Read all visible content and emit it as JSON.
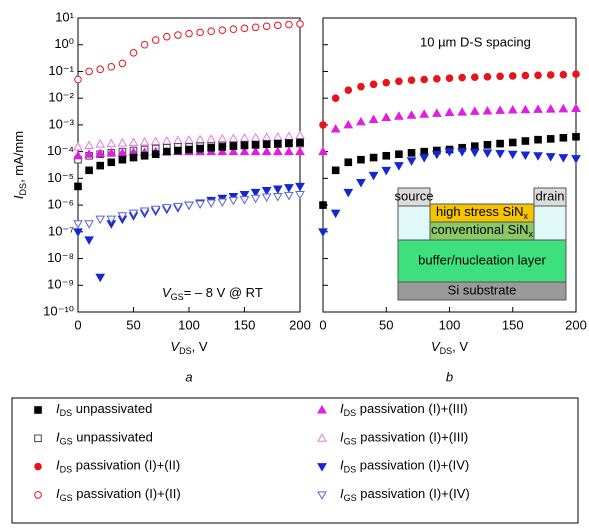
{
  "chart_data": [
    {
      "type": "scatter",
      "label": "a",
      "xlabel": "VDS, V",
      "ylabel": "IDS, mA/mm",
      "annotation": "VGS= – 8 V @ RT",
      "log_y": true,
      "xlim": [
        0,
        200
      ],
      "ylim": [
        1e-10,
        10
      ],
      "xticks": [
        0,
        50,
        100,
        150,
        200
      ],
      "yticks": [
        {
          "value": 10,
          "label": "10¹"
        },
        {
          "value": 1,
          "label": "10⁰"
        },
        {
          "value": 0.1,
          "label": "10⁻¹"
        },
        {
          "value": 0.01,
          "label": "10⁻²"
        },
        {
          "value": 0.001,
          "label": "10⁻³"
        },
        {
          "value": 0.0001,
          "label": "10⁻⁴"
        },
        {
          "value": 1e-05,
          "label": "10⁻⁵"
        },
        {
          "value": 1e-06,
          "label": "10⁻⁶"
        },
        {
          "value": 1e-07,
          "label": "10⁻⁷"
        },
        {
          "value": 1e-08,
          "label": "10⁻⁸"
        },
        {
          "value": 1e-09,
          "label": "10⁻⁹"
        },
        {
          "value": 1e-10,
          "label": "10⁻¹⁰"
        }
      ],
      "x": [
        0,
        10,
        20,
        30,
        40,
        50,
        60,
        70,
        80,
        90,
        100,
        110,
        120,
        130,
        140,
        150,
        160,
        170,
        180,
        190,
        200
      ],
      "series": [
        {
          "name": "IGS passivation (I)+(II)",
          "color": "#e8141c",
          "marker": "circle",
          "filled": false,
          "values": [
            0.05,
            0.1,
            0.12,
            0.15,
            0.2,
            0.5,
            1,
            1.5,
            2,
            2.3,
            2.6,
            2.9,
            3.2,
            3.5,
            3.8,
            4.1,
            4.5,
            4.9,
            5.3,
            5.7,
            6
          ]
        },
        {
          "name": "IGS passivation (I)+(III)",
          "color": "#e878e8",
          "marker": "triangle-up",
          "filled": false,
          "values": [
            0.00015,
            0.00017,
            0.00019,
            0.0002,
            0.00021,
            0.00022,
            0.00023,
            0.00024,
            0.00025,
            0.00026,
            0.00027,
            0.00028,
            0.00029,
            0.0003,
            0.00031,
            0.00032,
            0.00033,
            0.00034,
            0.00035,
            0.00037,
            0.0004
          ]
        },
        {
          "name": "IGS unpassivated",
          "color": "#444444",
          "marker": "square",
          "filled": false,
          "values": [
            5e-05,
            7e-05,
            8e-05,
            9e-05,
            0.0001,
            0.00011,
            0.00012,
            0.00013,
            0.00014,
            0.00015,
            0.00015,
            0.00016,
            0.00016,
            0.00017,
            0.00017,
            0.00018,
            0.00018,
            0.00019,
            0.00019,
            0.0002,
            0.0002
          ]
        },
        {
          "name": "IDS passivation (I)+(III)",
          "color": "#e01ee0",
          "marker": "triangle-up",
          "filled": true,
          "values": [
            7e-05,
            8e-05,
            8.5e-05,
            9e-05,
            9e-05,
            9.5e-05,
            9.5e-05,
            0.0001,
            0.0001,
            0.0001,
            0.0001,
            0.0001,
            0.0001,
            0.0001,
            0.0001,
            0.0001,
            0.0001,
            0.0001,
            0.0001,
            0.0001,
            0.0001
          ]
        },
        {
          "name": "IDS unpassivated",
          "color": "#000000",
          "marker": "square",
          "filled": true,
          "values": [
            5e-06,
            2e-05,
            3e-05,
            4e-05,
            5e-05,
            6e-05,
            7e-05,
            8e-05,
            0.0001,
            0.00011,
            0.00012,
            0.00013,
            0.00014,
            0.00015,
            0.00016,
            0.00017,
            0.00018,
            0.00019,
            0.0002,
            0.00021,
            0.00022
          ]
        },
        {
          "name": "IDS passivation (I)+(IV)",
          "color": "#1428d2",
          "marker": "triangle-down",
          "filled": true,
          "values": [
            1e-07,
            5e-08,
            2e-09,
            2e-07,
            3e-07,
            4e-07,
            5e-07,
            6e-07,
            7e-07,
            8e-07,
            1e-06,
            1.2e-06,
            1.5e-06,
            1.8e-06,
            2.1e-06,
            2.5e-06,
            3e-06,
            3.5e-06,
            4e-06,
            4.5e-06,
            5e-06
          ]
        },
        {
          "name": "IGS passivation (I)+(IV)",
          "color": "#5a64d2",
          "marker": "triangle-down",
          "filled": false,
          "values": [
            2e-07,
            2e-07,
            3e-07,
            3e-07,
            4e-07,
            5e-07,
            6e-07,
            7e-07,
            8e-07,
            9e-07,
            1e-06,
            1.1e-06,
            1.2e-06,
            1.3e-06,
            1.5e-06,
            1.6e-06,
            1.8e-06,
            2e-06,
            2.1e-06,
            2.3e-06,
            2.5e-06
          ]
        }
      ]
    },
    {
      "type": "scatter",
      "label": "b",
      "xlabel": "VDS, V",
      "annotation": "10 µm D-S spacing",
      "log_y": true,
      "xlim": [
        0,
        200
      ],
      "ylim": [
        1e-10,
        10
      ],
      "xticks": [
        0,
        50,
        100,
        150,
        200
      ],
      "yticks": [
        10,
        1,
        0.1,
        0.01,
        0.001,
        0.0001,
        1e-05,
        1e-06,
        1e-07,
        1e-08,
        1e-09,
        1e-10
      ],
      "x": [
        0,
        10,
        20,
        30,
        40,
        50,
        60,
        70,
        80,
        90,
        100,
        110,
        120,
        130,
        140,
        150,
        160,
        170,
        180,
        190,
        200
      ],
      "series": [
        {
          "name": "IDS passivation (I)+(II)",
          "color": "#e8141c",
          "marker": "circle",
          "filled": true,
          "values": [
            0.001,
            0.01,
            0.02,
            0.027,
            0.033,
            0.038,
            0.043,
            0.047,
            0.05,
            0.053,
            0.056,
            0.059,
            0.061,
            0.063,
            0.066,
            0.068,
            0.07,
            0.072,
            0.074,
            0.076,
            0.08
          ]
        },
        {
          "name": "IDS passivation (I)+(III)",
          "color": "#e01ee0",
          "marker": "triangle-up",
          "filled": true,
          "values": [
            0.0001,
            0.0007,
            0.001,
            0.0013,
            0.0016,
            0.0019,
            0.0021,
            0.0023,
            0.0025,
            0.0027,
            0.0029,
            0.003,
            0.0032,
            0.0033,
            0.0035,
            0.0036,
            0.0037,
            0.0038,
            0.0039,
            0.004,
            0.0041
          ]
        },
        {
          "name": "IDS unpassivated",
          "color": "#000000",
          "marker": "square",
          "filled": true,
          "values": [
            1e-06,
            2e-05,
            4e-05,
            5e-05,
            6e-05,
            7e-05,
            8e-05,
            9e-05,
            0.0001,
            0.00011,
            0.00012,
            0.00014,
            0.00016,
            0.00018,
            0.0002,
            0.00022,
            0.00025,
            0.00028,
            0.0003,
            0.00033,
            0.00036
          ]
        },
        {
          "name": "IDS passivation (I)+(IV)",
          "color": "#1428d2",
          "marker": "triangle-down",
          "filled": true,
          "values": [
            1e-07,
            5e-07,
            3e-06,
            7e-06,
            1.3e-05,
            2e-05,
            3e-05,
            4.5e-05,
            6e-05,
            8e-05,
            0.0001,
            0.0001,
            9.5e-05,
            9e-05,
            8.5e-05,
            8e-05,
            7.5e-05,
            7e-05,
            6.5e-05,
            6e-05,
            5.5e-05
          ]
        }
      ],
      "inset": {
        "source": "source",
        "drain": "drain",
        "high_stress": "high stress SiNx",
        "conventional": "conventional SiNx",
        "buffer": "buffer/nucleation layer",
        "substrate": "Si substrate"
      }
    }
  ],
  "legend": [
    "IDS unpassivated",
    "IGS unpassivated",
    "IDS passivation (I)+(II)",
    "IGS passivation (I)+(II)",
    "IDS passivation (I)+(III)",
    "IGS passivation (I)+(III)",
    "IDS passivation (I)+(IV)",
    "IGS passivation (I)+(IV)"
  ]
}
